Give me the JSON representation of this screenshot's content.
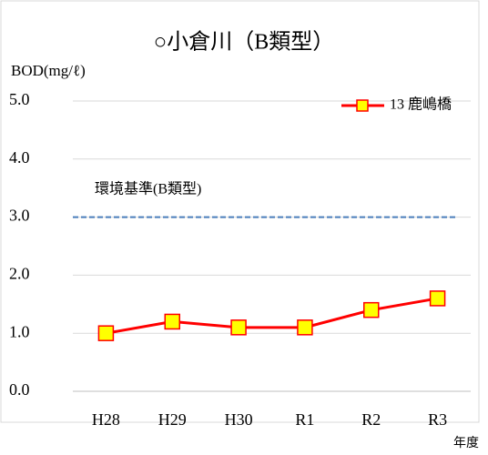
{
  "chart_data": {
    "type": "line",
    "title": "○小倉川（B類型）",
    "y_label": "BOD(mg/ℓ)",
    "x_label": "年度",
    "categories": [
      "H28",
      "H29",
      "H30",
      "R1",
      "R2",
      "R3"
    ],
    "series": [
      {
        "name": "13 鹿嶋橋",
        "color": "#ff0000",
        "marker_fill": "#ffff00",
        "values": [
          1.0,
          1.2,
          1.1,
          1.1,
          1.4,
          1.6
        ]
      }
    ],
    "reference": {
      "value": 3.0,
      "label": "環境基準(B類型)",
      "color": "#4a7ebb"
    },
    "ylim": [
      0,
      5
    ],
    "yticks": [
      {
        "value": 0,
        "label": "0.0"
      },
      {
        "value": 1,
        "label": "1.0"
      },
      {
        "value": 2,
        "label": "2.0"
      },
      {
        "value": 3,
        "label": "3.0"
      },
      {
        "value": 4,
        "label": "4.0"
      },
      {
        "value": 5,
        "label": "5.0"
      }
    ],
    "grid": true,
    "legend": "top-right"
  }
}
